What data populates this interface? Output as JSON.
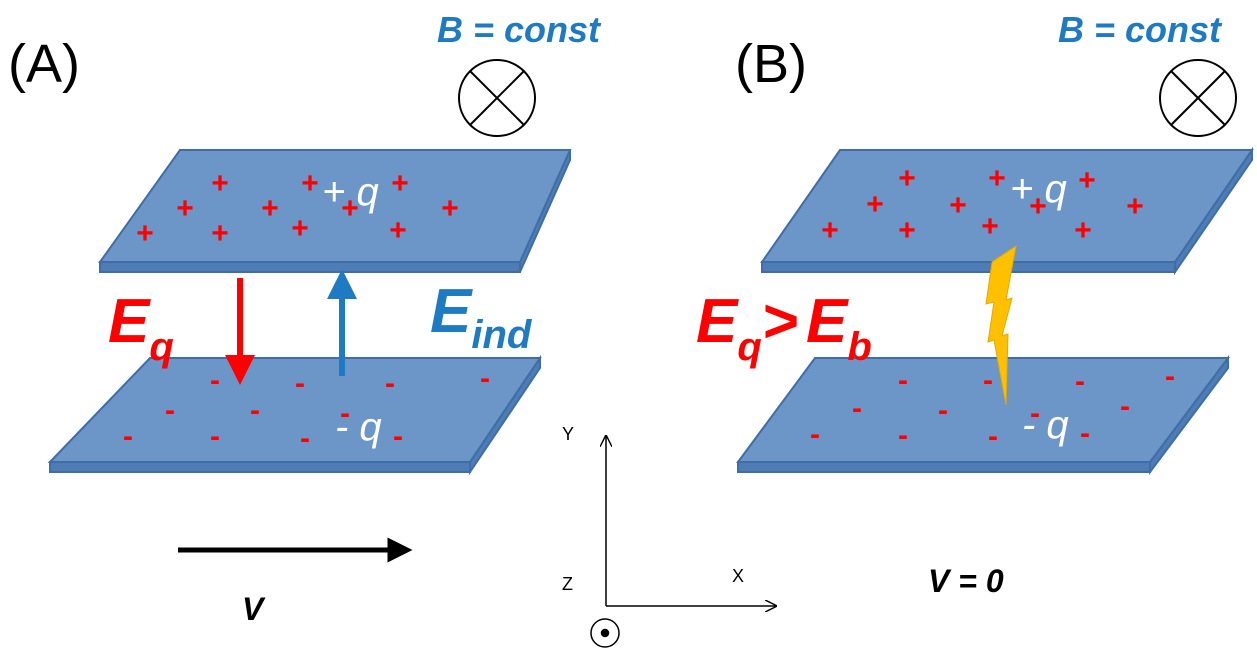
{
  "panel_a": {
    "label": "(A)",
    "field_label": "B = const",
    "top_charge": "+ q",
    "bottom_charge": "- q",
    "e_q": {
      "symbol": "E",
      "subscript": "q"
    },
    "e_ind": {
      "symbol": "E",
      "subscript": "ind"
    },
    "velocity": "V"
  },
  "panel_b": {
    "label": "(B)",
    "field_label": "B = const",
    "top_charge": "+ q",
    "bottom_charge": "- q",
    "inequality": {
      "left_symbol": "E",
      "left_subscript": "q",
      "relation": ">",
      "right_symbol": "E",
      "right_subscript": "b"
    },
    "velocity": "V = 0"
  },
  "axes": {
    "y": "Y",
    "z": "Z",
    "x": "X"
  },
  "plus_charge": "+",
  "minus_charge": "-"
}
